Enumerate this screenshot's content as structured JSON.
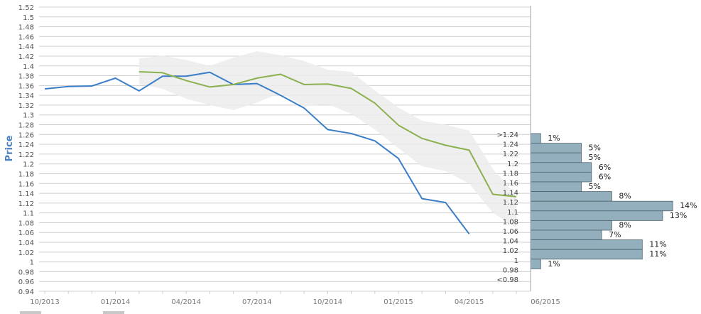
{
  "chart_data": {
    "type": "line",
    "ylabel": "Price",
    "ylim": [
      0.94,
      1.52
    ],
    "y_ticks": [
      "0.94",
      "0.96",
      "0.98",
      "1",
      "1.02",
      "1.04",
      "1.06",
      "1.08",
      "1.1",
      "1.12",
      "1.14",
      "1.16",
      "1.18",
      "1.2",
      "1.22",
      "1.24",
      "1.26",
      "1.28",
      "1.3",
      "1.32",
      "1.34",
      "1.36",
      "1.38",
      "1.4",
      "1.42",
      "1.44",
      "1.46",
      "1.48",
      "1.5",
      "1.52"
    ],
    "x_tick_labels": [
      "10/2013",
      "01/2014",
      "04/2014",
      "07/2014",
      "10/2014",
      "01/2015",
      "04/2015",
      "06/2015"
    ],
    "grid": true,
    "series": [
      {
        "color": "#3a7ec8",
        "x": [
          "2013-10",
          "2013-11",
          "2013-12",
          "2014-01",
          "2014-02",
          "2014-03",
          "2014-04",
          "2014-05",
          "2014-06",
          "2014-07",
          "2014-08",
          "2014-09",
          "2014-10",
          "2014-11",
          "2014-12",
          "2015-01",
          "2015-02",
          "2015-03",
          "2015-04"
        ],
        "values": [
          1.353,
          1.358,
          1.359,
          1.375,
          1.349,
          1.379,
          1.379,
          1.387,
          1.362,
          1.364,
          1.34,
          1.314,
          1.27,
          1.262,
          1.247,
          1.211,
          1.129,
          1.121,
          1.057
        ]
      },
      {
        "color": "#8bb04f",
        "x": [
          "2014-02",
          "2014-03",
          "2014-04",
          "2014-05",
          "2014-06",
          "2014-07",
          "2014-08",
          "2014-09",
          "2014-10",
          "2014-11",
          "2014-12",
          "2015-01",
          "2015-02",
          "2015-03",
          "2015-04",
          "2015-05",
          "2015-06"
        ],
        "values": [
          1.388,
          1.386,
          1.37,
          1.357,
          1.362,
          1.375,
          1.383,
          1.362,
          1.363,
          1.354,
          1.324,
          1.279,
          1.252,
          1.238,
          1.228,
          1.138,
          1.133
        ]
      }
    ],
    "band": {
      "color": "#ececec",
      "x": [
        "2014-02",
        "2014-03",
        "2014-04",
        "2014-05",
        "2014-06",
        "2014-07",
        "2014-08",
        "2014-09",
        "2014-10",
        "2014-11",
        "2014-12",
        "2015-01",
        "2015-02",
        "2015-03",
        "2015-04",
        "2015-05",
        "2015-06"
      ],
      "upper": [
        1.415,
        1.421,
        1.412,
        1.4,
        1.417,
        1.43,
        1.422,
        1.41,
        1.392,
        1.388,
        1.35,
        1.315,
        1.288,
        1.28,
        1.268,
        1.19,
        1.135
      ],
      "lower": [
        1.363,
        1.353,
        1.333,
        1.32,
        1.31,
        1.325,
        1.345,
        1.317,
        1.322,
        1.302,
        1.27,
        1.232,
        1.195,
        1.185,
        1.16,
        1.1,
        1.07
      ]
    },
    "distribution": {
      "color": "#93afbd",
      "bins": [
        {
          "label": ">1.24",
          "percent": 1
        },
        {
          "label": "1.24",
          "percent": 5
        },
        {
          "label": "1.22",
          "percent": 5
        },
        {
          "label": "1.2",
          "percent": 6
        },
        {
          "label": "1.18",
          "percent": 6
        },
        {
          "label": "1.16",
          "percent": 5
        },
        {
          "label": "1.14",
          "percent": 8
        },
        {
          "label": "1.12",
          "percent": 14
        },
        {
          "label": "1.1",
          "percent": 13
        },
        {
          "label": "1.08",
          "percent": 8
        },
        {
          "label": "1.06",
          "percent": 7
        },
        {
          "label": "1.04",
          "percent": 11
        },
        {
          "label": "1.02",
          "percent": 11
        },
        {
          "label": "1",
          "percent": 1
        },
        {
          "label": "0.98",
          "percent": 0
        },
        {
          "label": "<0.98",
          "percent": 0
        }
      ]
    }
  }
}
